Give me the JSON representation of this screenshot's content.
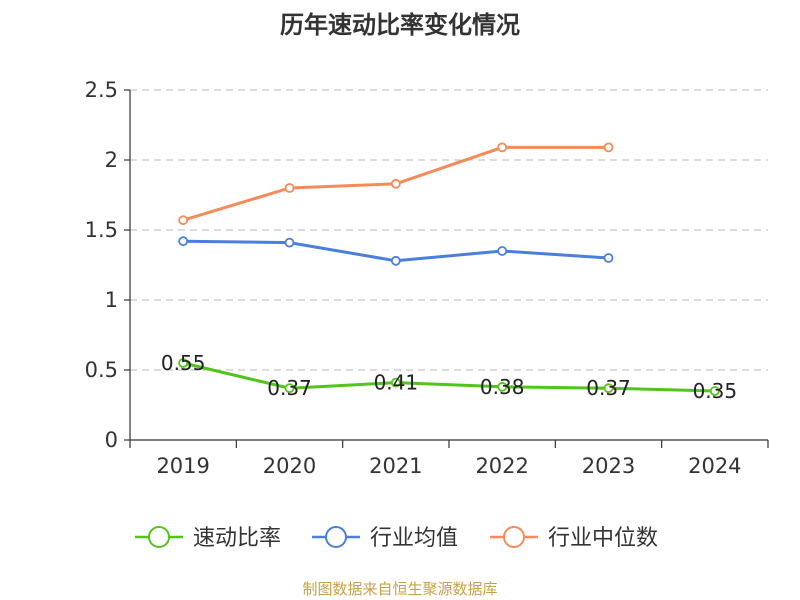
{
  "chart_data": {
    "type": "line",
    "title": "历年速动比率变化情况",
    "categories": [
      "2019",
      "2020",
      "2021",
      "2022",
      "2023",
      "2024"
    ],
    "ylim": [
      0,
      2.5
    ],
    "yticks": [
      "0",
      "0.5",
      "1",
      "1.5",
      "2",
      "2.5"
    ],
    "grid": true,
    "legend_position": "bottom",
    "series": [
      {
        "name": "速动比率",
        "color": "#52c41a",
        "values": [
          0.55,
          0.37,
          0.41,
          0.38,
          0.37,
          0.35
        ],
        "labels": [
          "0.55",
          "0.37",
          "0.41",
          "0.38",
          "0.37",
          "0.35"
        ],
        "show_labels": true
      },
      {
        "name": "行业均值",
        "color": "#4a7fdc",
        "values": [
          1.42,
          1.41,
          1.28,
          1.35,
          1.3,
          null
        ],
        "show_labels": false
      },
      {
        "name": "行业中位数",
        "color": "#f58b5a",
        "values": [
          1.57,
          1.8,
          1.83,
          2.09,
          2.09,
          null
        ],
        "show_labels": false
      }
    ]
  },
  "source_text": "制图数据来自恒生聚源数据库"
}
